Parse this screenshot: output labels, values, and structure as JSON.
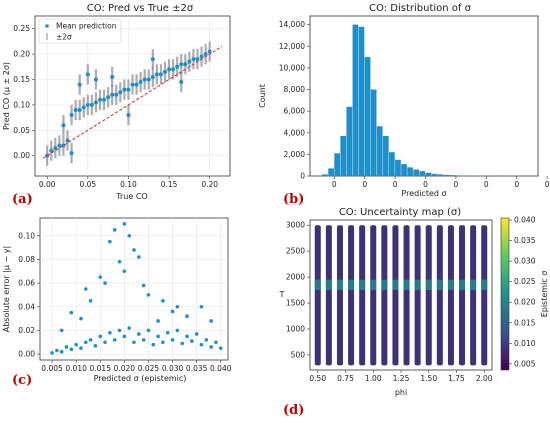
{
  "colors": {
    "marker": "#1f8fc9",
    "band": "#8a8a8a",
    "diagonal": "#d62728",
    "grid": "#e6e6e6",
    "panel_label": "#c00000",
    "colormap": [
      "#440154",
      "#3b528b",
      "#21918c",
      "#5ec962",
      "#fde725"
    ]
  },
  "chart_data": [
    {
      "panel_label": "(a)",
      "type": "scatter",
      "title": "CO: Pred vs True ±2σ",
      "xlabel": "True CO",
      "ylabel": "Pred CO (μ ± 2σ)",
      "xlim": [
        -0.015,
        0.225
      ],
      "ylim": [
        -0.04,
        0.275
      ],
      "xticks": [
        "0.00",
        "0.05",
        "0.10",
        "0.15",
        "0.20"
      ],
      "xtick_values": [
        0.0,
        0.05,
        0.1,
        0.15,
        0.2
      ],
      "yticks": [
        "0.00",
        "0.05",
        "0.10",
        "0.15",
        "0.20",
        "0.25"
      ],
      "ytick_values": [
        0.0,
        0.05,
        0.1,
        0.15,
        0.2,
        0.25
      ],
      "legend": [
        "Mean prediction",
        "±2σ"
      ],
      "legend_position": "top-left",
      "grid": true,
      "series": [
        {
          "name": "Mean prediction",
          "points": [
            [
              0.0,
              0.0
            ],
            [
              0.005,
              0.01
            ],
            [
              0.01,
              0.015
            ],
            [
              0.015,
              0.02
            ],
            [
              0.02,
              0.02
            ],
            [
              0.025,
              0.03
            ],
            [
              0.03,
              0.08
            ],
            [
              0.035,
              0.09
            ],
            [
              0.04,
              0.09
            ],
            [
              0.045,
              0.095
            ],
            [
              0.05,
              0.1
            ],
            [
              0.055,
              0.1
            ],
            [
              0.06,
              0.105
            ],
            [
              0.065,
              0.11
            ],
            [
              0.07,
              0.11
            ],
            [
              0.075,
              0.115
            ],
            [
              0.08,
              0.12
            ],
            [
              0.085,
              0.12
            ],
            [
              0.09,
              0.125
            ],
            [
              0.095,
              0.13
            ],
            [
              0.1,
              0.13
            ],
            [
              0.105,
              0.14
            ],
            [
              0.11,
              0.14
            ],
            [
              0.115,
              0.145
            ],
            [
              0.12,
              0.15
            ],
            [
              0.125,
              0.15
            ],
            [
              0.13,
              0.155
            ],
            [
              0.135,
              0.16
            ],
            [
              0.14,
              0.16
            ],
            [
              0.145,
              0.165
            ],
            [
              0.15,
              0.17
            ],
            [
              0.155,
              0.17
            ],
            [
              0.16,
              0.175
            ],
            [
              0.165,
              0.18
            ],
            [
              0.17,
              0.18
            ],
            [
              0.175,
              0.185
            ],
            [
              0.18,
              0.19
            ],
            [
              0.185,
              0.19
            ],
            [
              0.19,
              0.195
            ],
            [
              0.195,
              0.2
            ],
            [
              0.2,
              0.205
            ],
            [
              0.05,
              0.16
            ],
            [
              0.06,
              0.15
            ],
            [
              0.04,
              0.14
            ],
            [
              0.08,
              0.155
            ],
            [
              0.03,
              0.005
            ],
            [
              0.02,
              0.06
            ],
            [
              0.1,
              0.08
            ],
            [
              0.13,
              0.19
            ],
            [
              0.165,
              0.145
            ]
          ]
        },
        {
          "name": "±2σ",
          "half_width": 0.02
        }
      ],
      "diagonal": [
        [
          -0.005,
          -0.005
        ],
        [
          0.215,
          0.215
        ]
      ]
    },
    {
      "panel_label": "(b)",
      "type": "bar",
      "title": "CO: Distribution of σ",
      "xlabel": "Predicted σ",
      "ylabel": "Count",
      "ylim": [
        0,
        14800
      ],
      "yticks": [
        "0",
        "2,000",
        "4,000",
        "6,000",
        "8,000",
        "10,000",
        "12,000",
        "14,000"
      ],
      "ytick_values": [
        0,
        2000,
        4000,
        6000,
        8000,
        10000,
        12000,
        14000
      ],
      "xticks": [
        "0",
        "0",
        "0",
        "0",
        "0",
        "0",
        "0",
        "0"
      ],
      "bin_start": -0.002,
      "bin_width": 0.001,
      "xlim": [
        -0.004,
        0.0335
      ],
      "xtick_values": [
        0.0,
        0.005,
        0.01,
        0.015,
        0.02,
        0.025,
        0.03,
        0.035
      ],
      "values": [
        150,
        700,
        2100,
        3700,
        6400,
        14000,
        13800,
        11000,
        8000,
        4600,
        3700,
        2200,
        1500,
        1100,
        800,
        600,
        450,
        300,
        200,
        150,
        100,
        80,
        60,
        40,
        30,
        20,
        15,
        10,
        8,
        5,
        3,
        2,
        1,
        1,
        1
      ]
    },
    {
      "panel_label": "(c)",
      "type": "scatter",
      "xlabel": "Predicted σ (epistemic)",
      "ylabel": "Absolute error |μ − y|",
      "xlim": [
        0.0025,
        0.0415
      ],
      "ylim": [
        -0.005,
        0.115
      ],
      "xticks": [
        "0.005",
        "0.010",
        "0.015",
        "0.020",
        "0.025",
        "0.030",
        "0.035",
        "0.040"
      ],
      "xtick_values": [
        0.005,
        0.01,
        0.015,
        0.02,
        0.025,
        0.03,
        0.035,
        0.04
      ],
      "yticks": [
        "0.00",
        "0.02",
        "0.04",
        "0.06",
        "0.08",
        "0.10"
      ],
      "ytick_values": [
        0.0,
        0.02,
        0.04,
        0.06,
        0.08,
        0.1
      ],
      "grid": true,
      "points": [
        [
          0.005,
          0.001
        ],
        [
          0.006,
          0.003
        ],
        [
          0.007,
          0.002
        ],
        [
          0.008,
          0.006
        ],
        [
          0.009,
          0.004
        ],
        [
          0.01,
          0.008
        ],
        [
          0.011,
          0.005
        ],
        [
          0.012,
          0.01
        ],
        [
          0.013,
          0.012
        ],
        [
          0.014,
          0.007
        ],
        [
          0.015,
          0.015
        ],
        [
          0.016,
          0.01
        ],
        [
          0.017,
          0.018
        ],
        [
          0.018,
          0.012
        ],
        [
          0.019,
          0.02
        ],
        [
          0.02,
          0.015
        ],
        [
          0.021,
          0.022
        ],
        [
          0.022,
          0.01
        ],
        [
          0.023,
          0.017
        ],
        [
          0.024,
          0.012
        ],
        [
          0.025,
          0.02
        ],
        [
          0.026,
          0.008
        ],
        [
          0.027,
          0.015
        ],
        [
          0.028,
          0.01
        ],
        [
          0.029,
          0.018
        ],
        [
          0.03,
          0.012
        ],
        [
          0.031,
          0.02
        ],
        [
          0.032,
          0.009
        ],
        [
          0.033,
          0.015
        ],
        [
          0.034,
          0.011
        ],
        [
          0.035,
          0.017
        ],
        [
          0.036,
          0.008
        ],
        [
          0.037,
          0.012
        ],
        [
          0.038,
          0.006
        ],
        [
          0.039,
          0.01
        ],
        [
          0.04,
          0.005
        ],
        [
          0.018,
          0.105
        ],
        [
          0.02,
          0.11
        ],
        [
          0.021,
          0.1
        ],
        [
          0.017,
          0.095
        ],
        [
          0.022,
          0.088
        ],
        [
          0.015,
          0.065
        ],
        [
          0.019,
          0.078
        ],
        [
          0.023,
          0.082
        ],
        [
          0.012,
          0.055
        ],
        [
          0.025,
          0.05
        ],
        [
          0.028,
          0.045
        ],
        [
          0.031,
          0.04
        ],
        [
          0.016,
          0.06
        ],
        [
          0.02,
          0.07
        ],
        [
          0.009,
          0.035
        ],
        [
          0.013,
          0.045
        ],
        [
          0.024,
          0.058
        ],
        [
          0.03,
          0.036
        ],
        [
          0.036,
          0.04
        ],
        [
          0.038,
          0.028
        ],
        [
          0.033,
          0.032
        ],
        [
          0.027,
          0.028
        ],
        [
          0.011,
          0.03
        ],
        [
          0.007,
          0.02
        ]
      ]
    },
    {
      "panel_label": "(d)",
      "type": "heatmap",
      "title": "CO: Uncertainty map (σ)",
      "xlabel": "phi",
      "ylabel": "T",
      "xlim": [
        0.43,
        2.07
      ],
      "ylim": [
        210,
        3100
      ],
      "xticks": [
        "0.50",
        "0.75",
        "1.00",
        "1.25",
        "1.50",
        "1.75",
        "2.00"
      ],
      "xtick_values": [
        0.5,
        0.75,
        1.0,
        1.25,
        1.5,
        1.75,
        2.0
      ],
      "yticks": [
        "500",
        "1000",
        "1500",
        "2000",
        "2500",
        "3000"
      ],
      "ytick_values": [
        500,
        1000,
        1500,
        2000,
        2500,
        3000
      ],
      "phi_columns": [
        0.5,
        0.6,
        0.7,
        0.8,
        0.9,
        1.0,
        1.1,
        1.2,
        1.3,
        1.4,
        1.5,
        1.6,
        1.7,
        1.8,
        1.9,
        2.0
      ],
      "T_range": [
        300,
        3000
      ],
      "colorbar_label": "Epistemic σ",
      "colorbar_ticks": [
        "0.005",
        "0.010",
        "0.015",
        "0.020",
        "0.025",
        "0.030",
        "0.035",
        "0.040"
      ],
      "colorbar_tick_values": [
        0.005,
        0.01,
        0.015,
        0.02,
        0.025,
        0.03,
        0.035,
        0.04
      ],
      "clim": [
        0.0035,
        0.0405
      ],
      "base_level": 0.009,
      "hot_band_T": [
        1750,
        1950
      ],
      "hot_band_level": 0.022
    }
  ]
}
